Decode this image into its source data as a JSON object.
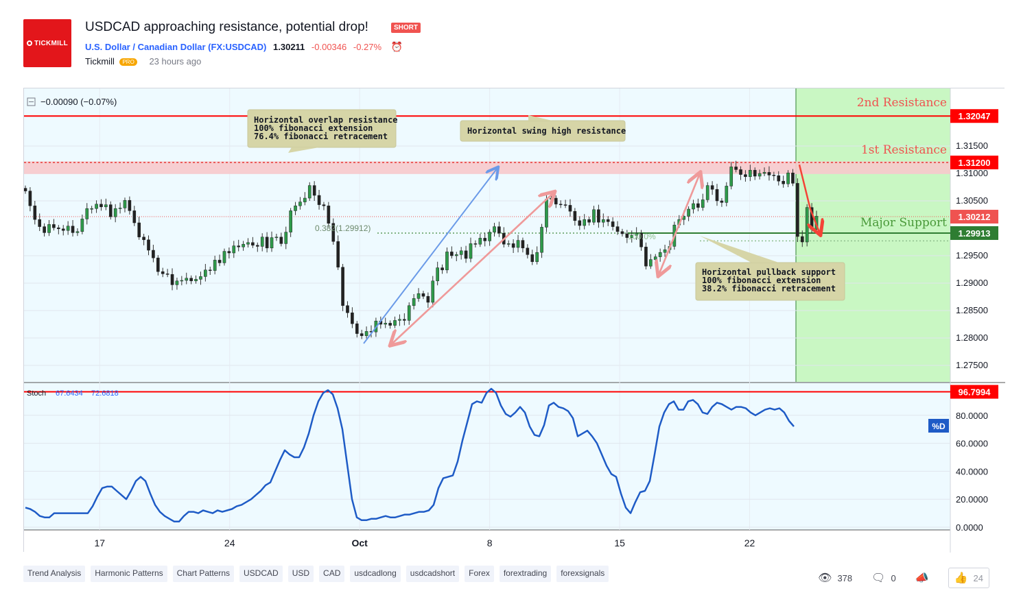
{
  "header": {
    "logo_text": "TICKMILL",
    "title": "USDCAD approaching resistance, potential drop!",
    "badge": "SHORT",
    "symbol_name": "U.S. Dollar / Canadian Dollar",
    "symbol_code": "(FX:USDCAD)",
    "price": "1.30211",
    "change": "-0.00346",
    "change_pct": "-0.27%",
    "author": "Tickmill",
    "author_badge": "PRO",
    "time_ago": "23 hours ago"
  },
  "chart_data": {
    "type": "candlestick",
    "legend_text": "−0.00090 (−0.07%)",
    "price_axis": {
      "ticks": [
        "1.31500",
        "1.31000",
        "1.30500",
        "1.29500",
        "1.29000",
        "1.28500",
        "1.28000",
        "1.27500"
      ],
      "tick_values": [
        1.315,
        1.31,
        1.305,
        1.295,
        1.29,
        1.285,
        1.28,
        1.275
      ],
      "ylim": [
        1.272,
        1.3255
      ]
    },
    "price_labels": [
      {
        "value": 1.32047,
        "text": "1.32047",
        "color": "#ff0000"
      },
      {
        "value": 1.312,
        "text": "1.31200",
        "color": "#ff0000"
      },
      {
        "value": 1.30212,
        "text": "1.30212",
        "color": "#ef5350"
      },
      {
        "value": 1.29913,
        "text": "1.29913",
        "color": "#2e7d32"
      }
    ],
    "levels": [
      {
        "name": "2nd Resistance",
        "value": 1.32047,
        "color": "#ef5350"
      },
      {
        "name": "1st Resistance",
        "value": 1.312,
        "color": "#ef5350"
      },
      {
        "name": "Major Support",
        "value": 1.29913,
        "color": "#4a9a3a"
      }
    ],
    "fib_label": "0.382(1.29912)",
    "fib_label_2": "100.0%",
    "annotations": [
      {
        "lines": [
          "Horizontal overlap resistance",
          "100% fibonacci extension",
          "76.4% fibonacci retracement"
        ]
      },
      {
        "lines": [
          "Horizontal swing high resistance"
        ]
      },
      {
        "lines": [
          "Horizontal pullback support",
          "100% fibonacci extension",
          "38.2% fibonacci retracement"
        ]
      }
    ],
    "x_axis": {
      "ticks": [
        "17",
        "24",
        "Oct",
        "8",
        "15",
        "22"
      ],
      "tick_days": [
        4,
        11,
        18,
        25,
        32,
        39
      ]
    },
    "closes": [
      1.3068,
      1.3041,
      1.3016,
      1.3003,
      1.2992,
      1.3007,
      1.3001,
      1.2999,
      1.2996,
      1.3004,
      1.2992,
      1.2994,
      1.3017,
      1.3036,
      1.3036,
      1.3044,
      1.3039,
      1.3043,
      1.3021,
      1.3036,
      1.3037,
      1.3051,
      1.3032,
      1.301,
      1.2984,
      1.2979,
      1.296,
      1.2946,
      1.2921,
      1.2917,
      1.2916,
      1.2897,
      1.2904,
      1.2905,
      1.2909,
      1.2904,
      1.2907,
      1.2912,
      1.2924,
      1.2923,
      1.2942,
      1.2937,
      1.2958,
      1.2955,
      1.2968,
      1.2966,
      1.2971,
      1.2974,
      1.2969,
      1.2967,
      1.2984,
      1.2964,
      1.2983,
      1.2984,
      1.2972,
      1.2993,
      1.3032,
      1.3041,
      1.3048,
      1.3055,
      1.3078,
      1.306,
      1.3043,
      1.3041,
      1.3009,
      1.2976,
      1.2929,
      1.2859,
      1.2846,
      1.2826,
      1.2808,
      1.2804,
      1.2812,
      1.2811,
      1.2831,
      1.2825,
      1.2827,
      1.2823,
      1.2832,
      1.2834,
      1.2832,
      1.2859,
      1.2872,
      1.2881,
      1.2876,
      1.2865,
      1.2904,
      1.2928,
      1.2924,
      1.2957,
      1.295,
      1.2952,
      1.2959,
      1.2945,
      1.2972,
      1.2971,
      1.2982,
      1.2977,
      1.2993,
      1.3003,
      1.2991,
      1.2971,
      1.2972,
      1.2965,
      1.2978,
      1.2964,
      1.2952,
      1.2939,
      1.2956,
      1.3002,
      1.3053,
      1.3055,
      1.3044,
      1.3043,
      1.3042,
      1.3031,
      1.3014,
      1.3005,
      1.3016,
      1.3011,
      1.3034,
      1.3011,
      1.3016,
      1.3012,
      1.3003,
      1.2994,
      1.299,
      1.2983,
      1.2987,
      1.2991,
      1.2966,
      1.2931,
      1.2943,
      1.2948,
      1.2956,
      1.2961,
      1.2967,
      1.3006,
      1.3016,
      1.3022,
      1.3035,
      1.3045,
      1.3038,
      1.3052,
      1.3078,
      1.3071,
      1.305,
      1.3047,
      1.3077,
      1.3112,
      1.3107,
      1.3098,
      1.3094,
      1.3106,
      1.3095,
      1.31,
      1.3102,
      1.3097,
      1.3096,
      1.3086,
      1.3081,
      1.3101,
      1.3082,
      1.2985,
      1.2975,
      1.3038,
      1.2998,
      1.3022
    ],
    "stochastic": {
      "label": "Stoch",
      "k_value": "67.6434",
      "d_value": "72.6818",
      "d_badge": "%D",
      "ticks": [
        "80.0000",
        "60.0000",
        "40.0000",
        "20.0000",
        "0.0000"
      ],
      "tick_values": [
        80,
        60,
        40,
        20,
        0
      ],
      "level_label": "96.7994",
      "level_value": 96.7994,
      "values": [
        14,
        13,
        11,
        8,
        7,
        7,
        10,
        10,
        10,
        10,
        10,
        10,
        10,
        10,
        15,
        22,
        28,
        29,
        29,
        26,
        23,
        20,
        26,
        33,
        36,
        33,
        24,
        16,
        11,
        8,
        6,
        4,
        4,
        8,
        11,
        11,
        10,
        12,
        11,
        10,
        12,
        11,
        12,
        13,
        15,
        16,
        18,
        20,
        23,
        26,
        30,
        32,
        40,
        48,
        55,
        52,
        50,
        50,
        57,
        67,
        80,
        90,
        96,
        98,
        95,
        85,
        70,
        45,
        20,
        7,
        5,
        5,
        6,
        6,
        7,
        8,
        7,
        7,
        8,
        9,
        9,
        10,
        11,
        11,
        12,
        16,
        28,
        35,
        36,
        37,
        47,
        62,
        75,
        88,
        90,
        89,
        96,
        99,
        96,
        87,
        81,
        79,
        82,
        86,
        82,
        72,
        66,
        65,
        73,
        87,
        89,
        86,
        85,
        83,
        78,
        65,
        67,
        69,
        65,
        60,
        52,
        44,
        38,
        36,
        24,
        14,
        10,
        18,
        25,
        26,
        33,
        52,
        72,
        82,
        88,
        90,
        84,
        84,
        90,
        91,
        88,
        82,
        81,
        86,
        89,
        88,
        86,
        84,
        86,
        86,
        85,
        82,
        80,
        82,
        84,
        85,
        84,
        85,
        82,
        76,
        72
      ]
    }
  },
  "tags": [
    "Trend Analysis",
    "Harmonic Patterns",
    "Chart Patterns",
    "USDCAD",
    "USD",
    "CAD",
    "usdcadlong",
    "usdcadshort",
    "Forex",
    "forextrading",
    "forexsignals"
  ],
  "stats": {
    "views": "378",
    "comments": "0",
    "likes": "24"
  },
  "icons": {
    "views": "eye-icon",
    "comments": "comment-icon",
    "share": "megaphone-icon",
    "like": "thumbs-up-icon",
    "alarm": "alarm-clock-icon"
  }
}
